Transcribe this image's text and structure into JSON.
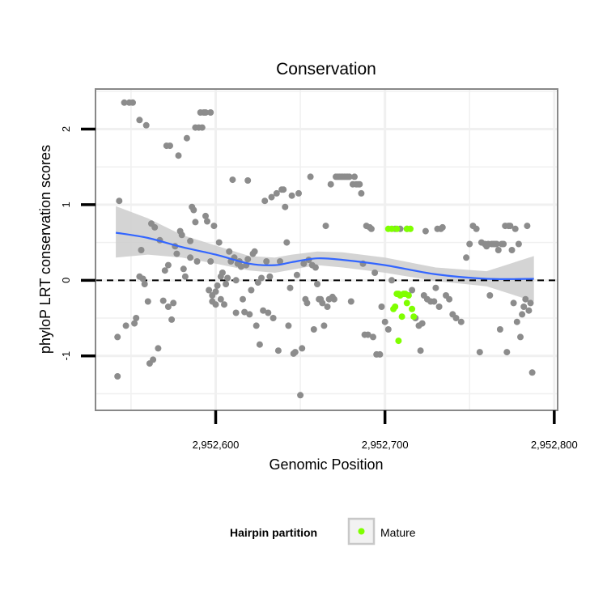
{
  "chart_data": {
    "type": "scatter",
    "title": "Conservation",
    "xlabel": "Genomic Position",
    "ylabel": "phyloP LRT conservation scores",
    "xlim": [
      2952529,
      2952802
    ],
    "ylim": [
      -1.72,
      2.53
    ],
    "x_ticks": [
      {
        "value": 2952600,
        "label": "2,952,600"
      },
      {
        "value": 2952700,
        "label": "2,952,700"
      },
      {
        "value": 2952800,
        "label": "2,952,800"
      }
    ],
    "y_ticks": [
      {
        "value": -1,
        "label": "-1"
      },
      {
        "value": 0,
        "label": "0"
      },
      {
        "value": 1,
        "label": "1"
      },
      {
        "value": 2,
        "label": "2"
      }
    ],
    "grid": true,
    "reference_line": {
      "y": 0,
      "style": "dashed",
      "color": "#000000"
    },
    "colors": {
      "other_points": "#8c8c8c",
      "mature_points": "#7fff00",
      "smooth_line": "#3366ff",
      "confidence_band": "#cccccc",
      "panel_border": "#888888",
      "grid": "#f0f0f0"
    },
    "series": [
      {
        "values": [
          [
            2952542,
            -0.75
          ],
          [
            2952542,
            -1.27
          ],
          [
            2952543,
            1.05
          ],
          [
            2952546,
            2.35
          ],
          [
            2952547,
            -0.6
          ],
          [
            2952549,
            2.35
          ],
          [
            2952551,
            2.35
          ],
          [
            2952552,
            -0.57
          ],
          [
            2952553,
            -0.5
          ],
          [
            2952555,
            2.12
          ],
          [
            2952555,
            0.05
          ],
          [
            2952556,
            0.4
          ],
          [
            2952557,
            0.02
          ],
          [
            2952558,
            -0.05
          ],
          [
            2952559,
            2.05
          ],
          [
            2952560,
            -0.28
          ],
          [
            2952561,
            -1.1
          ],
          [
            2952562,
            0.75
          ],
          [
            2952563,
            -1.05
          ],
          [
            2952564,
            0.7
          ],
          [
            2952566,
            -0.9
          ],
          [
            2952567,
            0.53
          ],
          [
            2952569,
            -0.27
          ],
          [
            2952570,
            0.13
          ],
          [
            2952571,
            1.78
          ],
          [
            2952572,
            -0.35
          ],
          [
            2952572,
            0.2
          ],
          [
            2952573,
            1.78
          ],
          [
            2952574,
            -0.52
          ],
          [
            2952575,
            -0.3
          ],
          [
            2952576,
            0.45
          ],
          [
            2952577,
            0.35
          ],
          [
            2952578,
            1.65
          ],
          [
            2952579,
            0.65
          ],
          [
            2952580,
            0.6
          ],
          [
            2952581,
            0.15
          ],
          [
            2952582,
            0.05
          ],
          [
            2952583,
            1.88
          ],
          [
            2952585,
            0.52
          ],
          [
            2952585,
            0.3
          ],
          [
            2952586,
            0.97
          ],
          [
            2952587,
            0.93
          ],
          [
            2952588,
            0.77
          ],
          [
            2952588,
            2.02
          ],
          [
            2952589,
            0.25
          ],
          [
            2952590,
            2.02
          ],
          [
            2952591,
            2.22
          ],
          [
            2952592,
            2.02
          ],
          [
            2952593,
            2.22
          ],
          [
            2952594,
            2.22
          ],
          [
            2952594,
            0.85
          ],
          [
            2952595,
            0.78
          ],
          [
            2952596,
            -0.13
          ],
          [
            2952597,
            2.22
          ],
          [
            2952597,
            0.25
          ],
          [
            2952598,
            -0.2
          ],
          [
            2952598,
            -0.28
          ],
          [
            2952599,
            0.72
          ],
          [
            2952600,
            -0.32
          ],
          [
            2952600,
            -0.15
          ],
          [
            2952601,
            -0.07
          ],
          [
            2952602,
            0.5
          ],
          [
            2952603,
            0.05
          ],
          [
            2952603,
            -0.25
          ],
          [
            2952604,
            0.1
          ],
          [
            2952605,
            -0.32
          ],
          [
            2952606,
            -0.05
          ],
          [
            2952607,
            0.03
          ],
          [
            2952608,
            0.38
          ],
          [
            2952609,
            0.25
          ],
          [
            2952610,
            1.33
          ],
          [
            2952611,
            0.3
          ],
          [
            2952612,
            0.0
          ],
          [
            2952612,
            -0.43
          ],
          [
            2952613,
            0.22
          ],
          [
            2952614,
            0.25
          ],
          [
            2952615,
            0.18
          ],
          [
            2952616,
            -0.25
          ],
          [
            2952617,
            -0.42
          ],
          [
            2952618,
            0.2
          ],
          [
            2952619,
            0.28
          ],
          [
            2952619,
            1.32
          ],
          [
            2952620,
            -0.45
          ],
          [
            2952621,
            -0.13
          ],
          [
            2952622,
            0.35
          ],
          [
            2952623,
            0.38
          ],
          [
            2952624,
            -0.6
          ],
          [
            2952625,
            -0.03
          ],
          [
            2952626,
            -0.85
          ],
          [
            2952627,
            0.03
          ],
          [
            2952628,
            -0.4
          ],
          [
            2952629,
            1.05
          ],
          [
            2952630,
            0.25
          ],
          [
            2952631,
            -0.43
          ],
          [
            2952632,
            0.05
          ],
          [
            2952633,
            1.1
          ],
          [
            2952634,
            -0.5
          ],
          [
            2952636,
            1.15
          ],
          [
            2952637,
            -0.93
          ],
          [
            2952638,
            0.25
          ],
          [
            2952639,
            1.2
          ],
          [
            2952640,
            1.2
          ],
          [
            2952641,
            0.97
          ],
          [
            2952642,
            0.5
          ],
          [
            2952643,
            -0.6
          ],
          [
            2952644,
            -0.1
          ],
          [
            2952645,
            1.12
          ],
          [
            2952646,
            -0.97
          ],
          [
            2952647,
            -0.95
          ],
          [
            2952648,
            0.07
          ],
          [
            2952649,
            1.15
          ],
          [
            2952650,
            -1.52
          ],
          [
            2952651,
            -0.9
          ],
          [
            2952652,
            0.22
          ],
          [
            2952653,
            -0.25
          ],
          [
            2952654,
            -0.3
          ],
          [
            2952655,
            0.27
          ],
          [
            2952656,
            1.37
          ],
          [
            2952657,
            0.2
          ],
          [
            2952658,
            -0.65
          ],
          [
            2952659,
            0.17
          ],
          [
            2952660,
            -0.05
          ],
          [
            2952661,
            -0.25
          ],
          [
            2952662,
            -0.25
          ],
          [
            2952663,
            -0.3
          ],
          [
            2952664,
            -0.6
          ],
          [
            2952665,
            0.72
          ],
          [
            2952666,
            -0.35
          ],
          [
            2952667,
            -0.25
          ],
          [
            2952668,
            1.27
          ],
          [
            2952669,
            -0.22
          ],
          [
            2952670,
            -0.25
          ],
          [
            2952671,
            1.37
          ],
          [
            2952672,
            1.37
          ],
          [
            2952673,
            1.37
          ],
          [
            2952674,
            1.37
          ],
          [
            2952675,
            1.37
          ],
          [
            2952676,
            1.37
          ],
          [
            2952677,
            1.37
          ],
          [
            2952678,
            1.37
          ],
          [
            2952679,
            1.37
          ],
          [
            2952680,
            -0.28
          ],
          [
            2952681,
            1.27
          ],
          [
            2952682,
            1.37
          ],
          [
            2952683,
            1.27
          ],
          [
            2952684,
            1.27
          ],
          [
            2952685,
            1.27
          ],
          [
            2952686,
            1.15
          ],
          [
            2952687,
            0.22
          ],
          [
            2952688,
            -0.72
          ],
          [
            2952689,
            0.72
          ],
          [
            2952690,
            -0.72
          ],
          [
            2952691,
            0.7
          ],
          [
            2952692,
            0.68
          ],
          [
            2952693,
            -0.75
          ],
          [
            2952694,
            0.1
          ],
          [
            2952695,
            -0.98
          ],
          [
            2952697,
            -0.98
          ],
          [
            2952698,
            -0.35
          ],
          [
            2952700,
            -0.55
          ],
          [
            2952702,
            -0.65
          ],
          [
            2952704,
            0.0
          ],
          [
            2952706,
            0.68
          ],
          [
            2952709,
            0.68
          ],
          [
            2952713,
            0.68
          ],
          [
            2952716,
            -0.13
          ],
          [
            2952718,
            -0.5
          ],
          [
            2952720,
            -0.6
          ],
          [
            2952721,
            -0.93
          ],
          [
            2952722,
            -0.57
          ],
          [
            2952723,
            -0.2
          ],
          [
            2952724,
            0.65
          ],
          [
            2952725,
            -0.25
          ],
          [
            2952727,
            -0.28
          ],
          [
            2952729,
            -0.28
          ],
          [
            2952730,
            -0.1
          ],
          [
            2952731,
            0.68
          ],
          [
            2952732,
            -0.35
          ],
          [
            2952733,
            0.68
          ],
          [
            2952734,
            0.7
          ],
          [
            2952736,
            -0.2
          ],
          [
            2952738,
            -0.25
          ],
          [
            2952740,
            -0.45
          ],
          [
            2952742,
            -0.5
          ],
          [
            2952745,
            -0.55
          ],
          [
            2952748,
            0.3
          ],
          [
            2952750,
            0.48
          ],
          [
            2952752,
            0.72
          ],
          [
            2952754,
            0.68
          ],
          [
            2952756,
            -0.95
          ],
          [
            2952757,
            0.5
          ],
          [
            2952759,
            0.48
          ],
          [
            2952760,
            0.45
          ],
          [
            2952761,
            0.48
          ],
          [
            2952762,
            -0.2
          ],
          [
            2952763,
            0.48
          ],
          [
            2952764,
            0.48
          ],
          [
            2952765,
            0.48
          ],
          [
            2952766,
            0.48
          ],
          [
            2952767,
            0.4
          ],
          [
            2952768,
            -0.65
          ],
          [
            2952769,
            0.48
          ],
          [
            2952770,
            0.48
          ],
          [
            2952771,
            0.72
          ],
          [
            2952772,
            -0.95
          ],
          [
            2952773,
            0.72
          ],
          [
            2952774,
            0.72
          ],
          [
            2952775,
            0.4
          ],
          [
            2952776,
            -0.3
          ],
          [
            2952777,
            0.68
          ],
          [
            2952778,
            -0.55
          ],
          [
            2952779,
            0.48
          ],
          [
            2952780,
            -0.75
          ],
          [
            2952781,
            -0.45
          ],
          [
            2952782,
            -0.35
          ],
          [
            2952783,
            -0.25
          ],
          [
            2952784,
            0.72
          ],
          [
            2952785,
            -0.4
          ],
          [
            2952786,
            -0.3
          ],
          [
            2952787,
            -1.22
          ]
        ]
      },
      {
        "name": "Mature",
        "values": [
          [
            2952702,
            0.68
          ],
          [
            2952704,
            0.68
          ],
          [
            2952705,
            -0.38
          ],
          [
            2952707,
            0.68
          ],
          [
            2952707,
            -0.18
          ],
          [
            2952708,
            -0.18
          ],
          [
            2952709,
            -0.2
          ],
          [
            2952710,
            -0.48
          ],
          [
            2952711,
            -0.18
          ],
          [
            2952712,
            -0.18
          ],
          [
            2952713,
            0.68
          ],
          [
            2952714,
            -0.2
          ],
          [
            2952715,
            0.68
          ],
          [
            2952716,
            -0.38
          ],
          [
            2952717,
            -0.48
          ],
          [
            2952708,
            -0.8
          ],
          [
            2952706,
            -0.35
          ],
          [
            2952713,
            -0.3
          ]
        ]
      }
    ],
    "smooth": {
      "x": [
        2952541,
        2952560,
        2952580,
        2952600,
        2952620,
        2952635,
        2952645,
        2952660,
        2952675,
        2952700,
        2952730,
        2952760,
        2952788
      ],
      "y": [
        0.63,
        0.56,
        0.44,
        0.34,
        0.22,
        0.2,
        0.24,
        0.29,
        0.27,
        0.2,
        0.08,
        0.02,
        0.02
      ],
      "se_upper": [
        0.98,
        0.82,
        0.6,
        0.46,
        0.32,
        0.3,
        0.34,
        0.38,
        0.37,
        0.3,
        0.17,
        0.12,
        0.32
      ],
      "se_lower": [
        0.3,
        0.34,
        0.3,
        0.22,
        0.13,
        0.1,
        0.14,
        0.2,
        0.17,
        0.1,
        -0.01,
        -0.08,
        -0.28
      ]
    },
    "legend": {
      "title": "Hairpin partition",
      "entries": [
        "Mature"
      ],
      "placement": "bottom"
    }
  }
}
